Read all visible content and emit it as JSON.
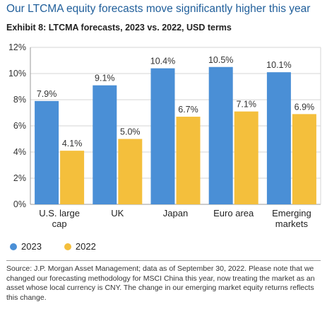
{
  "title": "Our LTCMA equity forecasts move significantly higher this year",
  "subtitle": "Exhibit 8: LTCMA forecasts, 2023 vs. 2022, USD terms",
  "colors": {
    "title": "#1f5e9a",
    "series_2023": "#4a8fd6",
    "series_2022": "#f4bf3c"
  },
  "chart_data": {
    "type": "bar",
    "categories": [
      [
        "U.S. large",
        "cap"
      ],
      [
        "UK"
      ],
      [
        "Japan"
      ],
      [
        "Euro area"
      ],
      [
        "Emerging",
        "markets"
      ]
    ],
    "series": [
      {
        "name": "2023",
        "values": [
          7.9,
          9.1,
          10.4,
          10.5,
          10.1
        ],
        "labels": [
          "7.9%",
          "9.1%",
          "10.4%",
          "10.5%",
          "10.1%"
        ]
      },
      {
        "name": "2022",
        "values": [
          4.1,
          5.0,
          6.7,
          7.1,
          6.9
        ],
        "labels": [
          "4.1%",
          "5.0%",
          "6.7%",
          "7.1%",
          "6.9%"
        ]
      }
    ],
    "ylim": [
      0,
      12
    ],
    "yticks": [
      0,
      2,
      4,
      6,
      8,
      10,
      12
    ],
    "ytick_labels": [
      "0%",
      "2%",
      "4%",
      "6%",
      "8%",
      "10%",
      "12%"
    ],
    "grid": true,
    "legend_position": "bottom-left"
  },
  "source": "Source: J.P. Morgan Asset Management; data as of September 30, 2022. Please note that we changed our forecasting methodology for MSCI China this year, now treating the market as an asset whose local currency is CNY. The change in our emerging market equity returns reflects this change."
}
